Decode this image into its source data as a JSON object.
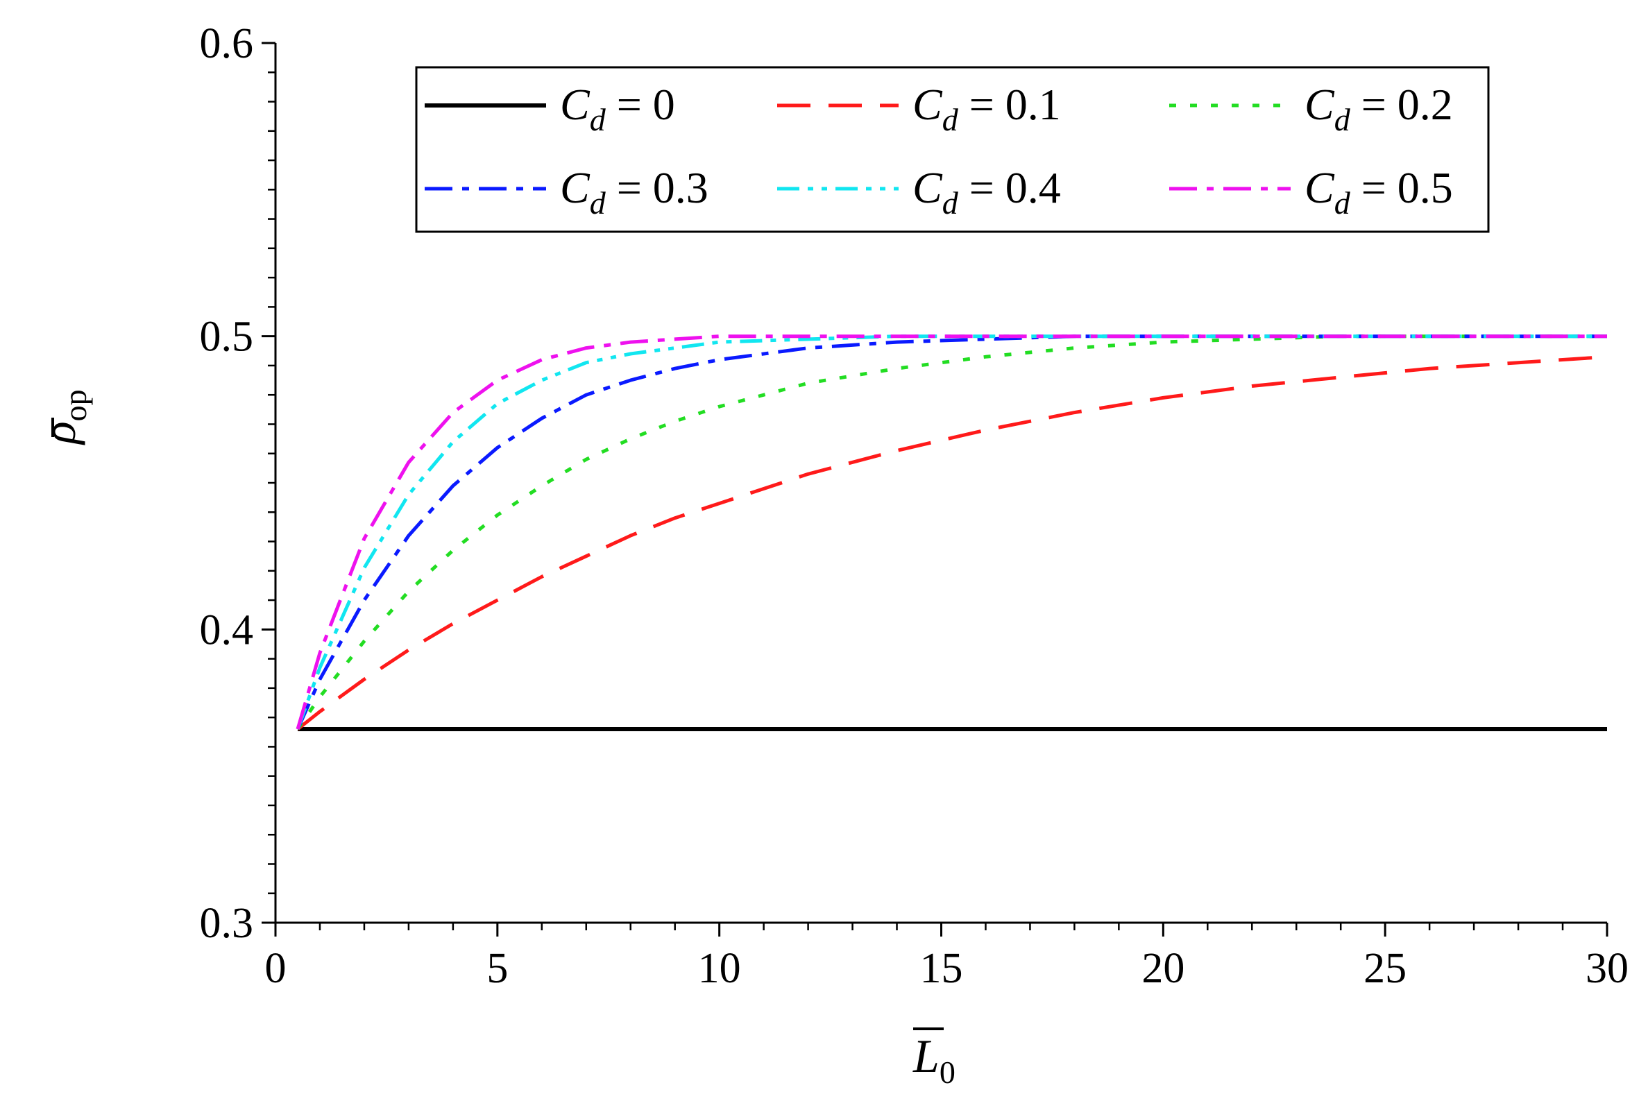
{
  "chart_data": {
    "type": "line",
    "xlabel": {
      "symbol": "L",
      "subscript": "0"
    },
    "ylabel": {
      "symbol": "ρ",
      "subscript": "op"
    },
    "xlim": [
      0,
      30
    ],
    "ylim": [
      0.3,
      0.6
    ],
    "xticks": [
      0,
      5,
      10,
      15,
      20,
      25,
      30
    ],
    "xtick_labels": [
      "0",
      "5",
      "10",
      "15",
      "20",
      "25",
      "30"
    ],
    "yticks": [
      0.3,
      0.4,
      0.5,
      0.6
    ],
    "ytick_labels": [
      "0.3",
      "0.4",
      "0.5",
      "0.6"
    ],
    "grid": false,
    "legend_position": "top",
    "legend_symbol": "C",
    "legend_subscript": "d",
    "x": [
      0.5,
      1,
      2,
      3,
      4,
      5,
      6,
      7,
      8,
      9,
      10,
      12,
      14,
      16,
      18,
      20,
      22,
      24,
      26,
      28,
      30
    ],
    "series": [
      {
        "name": "= 0",
        "color": "#000000",
        "style": "solid",
        "values": [
          0.366,
          0.366,
          0.366,
          0.366,
          0.366,
          0.366,
          0.366,
          0.366,
          0.366,
          0.366,
          0.366,
          0.366,
          0.366,
          0.366,
          0.366,
          0.366,
          0.366,
          0.366,
          0.366,
          0.366,
          0.366
        ]
      },
      {
        "name": "= 0.1",
        "color": "#ff1a1a",
        "style": "dash",
        "values": [
          0.366,
          0.372,
          0.383,
          0.393,
          0.402,
          0.41,
          0.418,
          0.425,
          0.432,
          0.438,
          0.443,
          0.453,
          0.461,
          0.468,
          0.474,
          0.479,
          0.483,
          0.486,
          0.489,
          0.491,
          0.493
        ]
      },
      {
        "name": "= 0.2",
        "color": "#22dd22",
        "style": "dot",
        "values": [
          0.366,
          0.377,
          0.396,
          0.413,
          0.427,
          0.439,
          0.449,
          0.458,
          0.465,
          0.471,
          0.476,
          0.484,
          0.489,
          0.493,
          0.496,
          0.498,
          0.499,
          0.5,
          0.5,
          0.5,
          0.5
        ]
      },
      {
        "name": "= 0.3",
        "color": "#0a1aff",
        "style": "dashdot",
        "values": [
          0.366,
          0.383,
          0.41,
          0.432,
          0.449,
          0.462,
          0.472,
          0.48,
          0.485,
          0.489,
          0.492,
          0.496,
          0.498,
          0.499,
          0.5,
          0.5,
          0.5,
          0.5,
          0.5,
          0.5,
          0.5
        ]
      },
      {
        "name": "= 0.4",
        "color": "#11e6f0",
        "style": "dashdotdot",
        "values": [
          0.366,
          0.387,
          0.421,
          0.446,
          0.464,
          0.477,
          0.485,
          0.491,
          0.494,
          0.496,
          0.498,
          0.499,
          0.5,
          0.5,
          0.5,
          0.5,
          0.5,
          0.5,
          0.5,
          0.5,
          0.5
        ]
      },
      {
        "name": "= 0.5",
        "color": "#ee11ee",
        "style": "dashdot",
        "values": [
          0.366,
          0.392,
          0.431,
          0.457,
          0.474,
          0.485,
          0.492,
          0.496,
          0.498,
          0.499,
          0.5,
          0.5,
          0.5,
          0.5,
          0.5,
          0.5,
          0.5,
          0.5,
          0.5,
          0.5,
          0.5
        ]
      }
    ]
  }
}
